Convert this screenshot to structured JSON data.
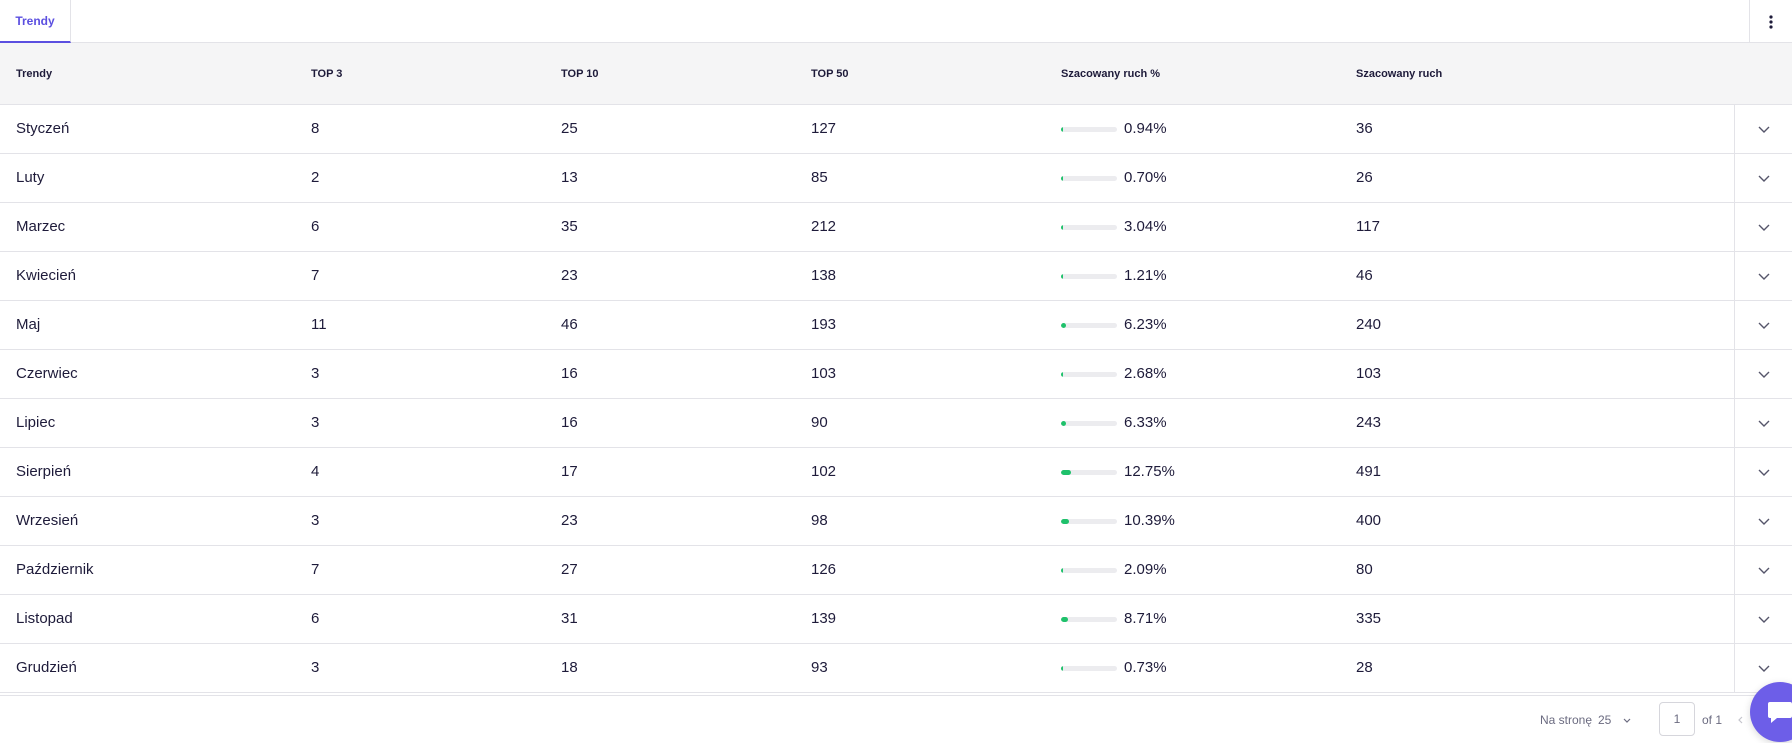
{
  "tabs": [
    {
      "label": "Trendy",
      "active": true
    }
  ],
  "table": {
    "headers": {
      "month": "Trendy",
      "top3": "TOP 3",
      "top10": "TOP 10",
      "top50": "TOP 50",
      "traffic_pct": "Szacowany ruch %",
      "traffic": "Szacowany ruch"
    },
    "rows": [
      {
        "month": "Styczeń",
        "top3": "8",
        "top10": "25",
        "top50": "127",
        "traffic_pct": "0.94%",
        "traffic_fraction": 0.0094,
        "traffic": "36"
      },
      {
        "month": "Luty",
        "top3": "2",
        "top10": "13",
        "top50": "85",
        "traffic_pct": "0.70%",
        "traffic_fraction": 0.007,
        "traffic": "26"
      },
      {
        "month": "Marzec",
        "top3": "6",
        "top10": "35",
        "top50": "212",
        "traffic_pct": "3.04%",
        "traffic_fraction": 0.0304,
        "traffic": "117"
      },
      {
        "month": "Kwiecień",
        "top3": "7",
        "top10": "23",
        "top50": "138",
        "traffic_pct": "1.21%",
        "traffic_fraction": 0.0121,
        "traffic": "46"
      },
      {
        "month": "Maj",
        "top3": "11",
        "top10": "46",
        "top50": "193",
        "traffic_pct": "6.23%",
        "traffic_fraction": 0.0623,
        "traffic": "240"
      },
      {
        "month": "Czerwiec",
        "top3": "3",
        "top10": "16",
        "top50": "103",
        "traffic_pct": "2.68%",
        "traffic_fraction": 0.0268,
        "traffic": "103"
      },
      {
        "month": "Lipiec",
        "top3": "3",
        "top10": "16",
        "top50": "90",
        "traffic_pct": "6.33%",
        "traffic_fraction": 0.0633,
        "traffic": "243"
      },
      {
        "month": "Sierpień",
        "top3": "4",
        "top10": "17",
        "top50": "102",
        "traffic_pct": "12.75%",
        "traffic_fraction": 0.1275,
        "traffic": "491"
      },
      {
        "month": "Wrzesień",
        "top3": "3",
        "top10": "23",
        "top50": "98",
        "traffic_pct": "10.39%",
        "traffic_fraction": 0.1039,
        "traffic": "400"
      },
      {
        "month": "Październik",
        "top3": "7",
        "top10": "27",
        "top50": "126",
        "traffic_pct": "2.09%",
        "traffic_fraction": 0.0209,
        "traffic": "80"
      },
      {
        "month": "Listopad",
        "top3": "6",
        "top10": "31",
        "top50": "139",
        "traffic_pct": "8.71%",
        "traffic_fraction": 0.0871,
        "traffic": "335"
      },
      {
        "month": "Grudzień",
        "top3": "3",
        "top10": "18",
        "top50": "93",
        "traffic_pct": "0.73%",
        "traffic_fraction": 0.0073,
        "traffic": "28"
      }
    ]
  },
  "pagination": {
    "per_page_label": "Na stronę",
    "per_page_value": "25",
    "current_page": "1",
    "of_label": "of 1"
  },
  "colors": {
    "accent": "#5b4fe0",
    "bar_fill": "#1fc16b",
    "bar_track": "#ececef",
    "chat_button": "#6d5ee8"
  },
  "icons": {
    "menu": "kebab-menu-icon",
    "expand": "chevron-down-icon",
    "per_page": "chevron-down-icon",
    "prev_page": "chevron-left-icon",
    "chat": "chat-bubble-icon"
  }
}
